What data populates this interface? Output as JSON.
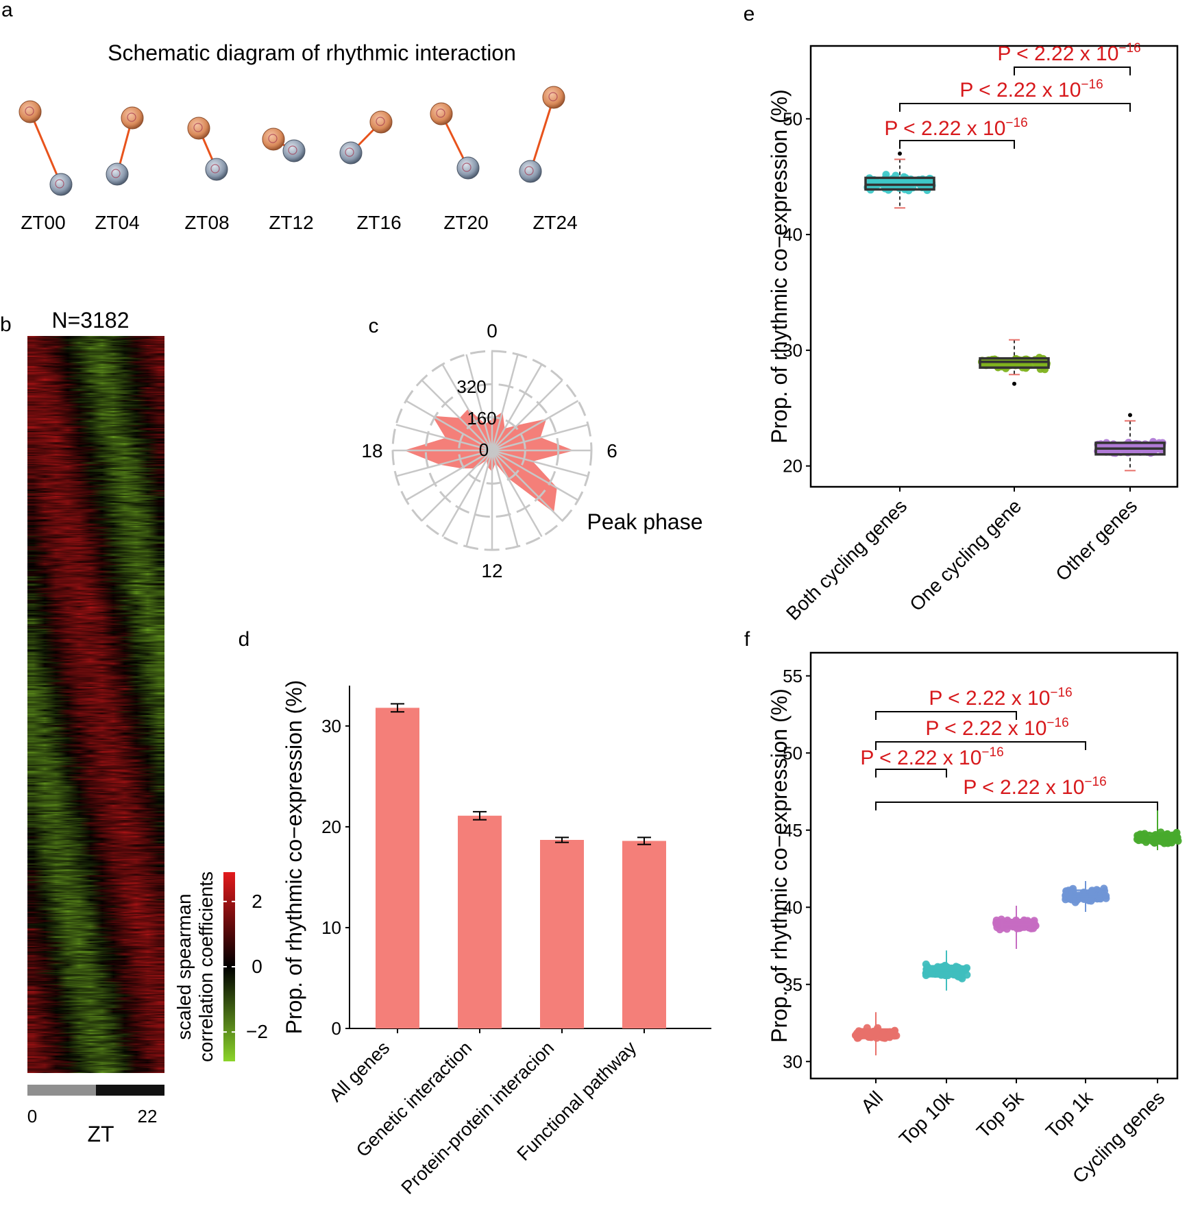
{
  "colors": {
    "red_text": "#d7191c",
    "bar": "#f47f79",
    "radar_fill": "#f47f79",
    "radar_grid": "#c7c7c7",
    "heat_high": "#e31a1c",
    "heat_mid": "#000000",
    "heat_low": "#8bd42a",
    "both_cycling": "#3ec8c8",
    "one_cycling": "#7fb21f",
    "other_genes": "#b07ad6",
    "f_all": "#e8706a",
    "f_top10k": "#3fbebe",
    "f_top5k": "#c66cc2",
    "f_top1k": "#6f95d6",
    "f_cycling": "#48aa2c",
    "node_orange": "#d98a5a",
    "node_blue": "#8b9aae",
    "link": "#e8531c"
  },
  "panels": {
    "a": {
      "label": "a",
      "title": "Schematic diagram of rhythmic  interaction",
      "timepoints": [
        "ZT00",
        "ZT04",
        "ZT08",
        "ZT12",
        "ZT16",
        "ZT20",
        "ZT24"
      ]
    },
    "b": {
      "label": "b",
      "count_label": "N=3182",
      "n_rows": 3182,
      "n_columns": 12,
      "x_title": "ZT",
      "x_ticks": [
        "0",
        "22"
      ],
      "colorbar_title_line1": "scaled spearman",
      "colorbar_title_line2": "correlation coefficients",
      "colorbar_ticks": [
        "2",
        "0",
        "−2"
      ],
      "colorbar_values": [
        2,
        0,
        -2
      ],
      "colorbar_range": [
        -2.9,
        2.9
      ]
    },
    "c": {
      "label": "c",
      "annotation": "Peak phase"
    },
    "d": {
      "label": "d"
    },
    "e": {
      "label": "e"
    },
    "f": {
      "label": "f"
    }
  },
  "chart_data": [
    {
      "id": "c",
      "type": "radar",
      "angle_labels": [
        {
          "label": "0",
          "hour": 0
        },
        {
          "label": "6",
          "hour": 6
        },
        {
          "label": "12",
          "hour": 12
        },
        {
          "label": "18",
          "hour": 18
        }
      ],
      "radial_ticks": [
        "0",
        "160",
        "320"
      ],
      "radial_values": [
        0,
        160,
        320
      ],
      "rmax": 480,
      "hours": [
        0,
        1,
        2,
        3,
        4,
        5,
        6,
        7,
        8,
        9,
        10,
        11,
        12,
        13,
        14,
        15,
        16,
        17,
        18,
        19,
        20,
        21,
        22,
        23
      ],
      "values": [
        150,
        190,
        120,
        170,
        300,
        240,
        390,
        200,
        360,
        420,
        150,
        60,
        100,
        80,
        50,
        120,
        170,
        260,
        420,
        230,
        330,
        220,
        230,
        130
      ]
    },
    {
      "id": "d",
      "type": "bar",
      "title": "",
      "xlabel": "",
      "ylabel": "Prop. of rhythmic co−expression (%)",
      "categories": [
        "All genes",
        "Genetic interaction",
        "Protein-protein interacion",
        "Functional pathway"
      ],
      "values": [
        31.8,
        21.1,
        18.7,
        18.6
      ],
      "errors": [
        0.4,
        0.4,
        0.25,
        0.35
      ],
      "yticks": [
        0,
        10,
        20,
        30
      ],
      "ylim": [
        0,
        34
      ]
    },
    {
      "id": "e",
      "type": "box",
      "title": "",
      "xlabel": "",
      "ylabel": "Prop. of rhythmic co−expression (%)",
      "categories": [
        "Both cycling genes",
        "One cycling gene",
        "Other genes"
      ],
      "boxes": [
        {
          "min": 42.3,
          "q1": 43.9,
          "median": 44.3,
          "q3": 44.9,
          "max": 46.5,
          "outliers": [
            47.0
          ]
        },
        {
          "min": 27.9,
          "q1": 28.5,
          "median": 29.0,
          "q3": 29.3,
          "max": 30.9,
          "outliers": [
            27.1
          ]
        },
        {
          "min": 19.6,
          "q1": 21.0,
          "median": 21.5,
          "q3": 22.0,
          "max": 23.9,
          "outliers": [
            24.4
          ]
        }
      ],
      "yticks": [
        20,
        30,
        40,
        50
      ],
      "ylim": [
        18.2,
        56.3
      ],
      "comparisons": [
        {
          "from": 1,
          "to": 2,
          "label": "P < 2.22 x 10",
          "exponent": "−16"
        },
        {
          "from": 0,
          "to": 2,
          "label": "P < 2.22 x 10",
          "exponent": "−16"
        },
        {
          "from": 0,
          "to": 1,
          "label": "P < 2.22 x 10",
          "exponent": "−16"
        }
      ]
    },
    {
      "id": "f",
      "type": "box",
      "title": "",
      "xlabel": "",
      "ylabel": "Prop. of rhythmic co−expression (%)",
      "categories": [
        "All",
        "Top 10k",
        "Top 5k",
        "Top 1k",
        "Cycling genes"
      ],
      "boxes": [
        {
          "min": 30.4,
          "q1": 31.5,
          "median": 31.8,
          "q3": 32.1,
          "max": 33.2
        },
        {
          "min": 34.6,
          "q1": 35.5,
          "median": 35.9,
          "q3": 36.2,
          "max": 37.2
        },
        {
          "min": 37.3,
          "q1": 38.6,
          "median": 38.9,
          "q3": 39.2,
          "max": 40.1
        },
        {
          "min": 39.7,
          "q1": 40.4,
          "median": 40.7,
          "q3": 41.1,
          "max": 41.7
        },
        {
          "min": 43.7,
          "q1": 44.2,
          "median": 44.5,
          "q3": 44.8,
          "max": 46.3
        }
      ],
      "yticks": [
        30,
        35,
        40,
        45,
        50,
        55
      ],
      "ylim": [
        28.9,
        56.5
      ],
      "comparisons": [
        {
          "from": 0,
          "to": 2,
          "label": "P < 2.22 x 10",
          "exponent": "−16"
        },
        {
          "from": 0,
          "to": 3,
          "label": "P < 2.22 x 10",
          "exponent": "−16"
        },
        {
          "from": 0,
          "to": 1,
          "label": "P < 2.22 x 10",
          "exponent": "−16"
        },
        {
          "from": 0,
          "to": 4,
          "label": "P < 2.22 x 10",
          "exponent": "−16"
        }
      ]
    }
  ]
}
